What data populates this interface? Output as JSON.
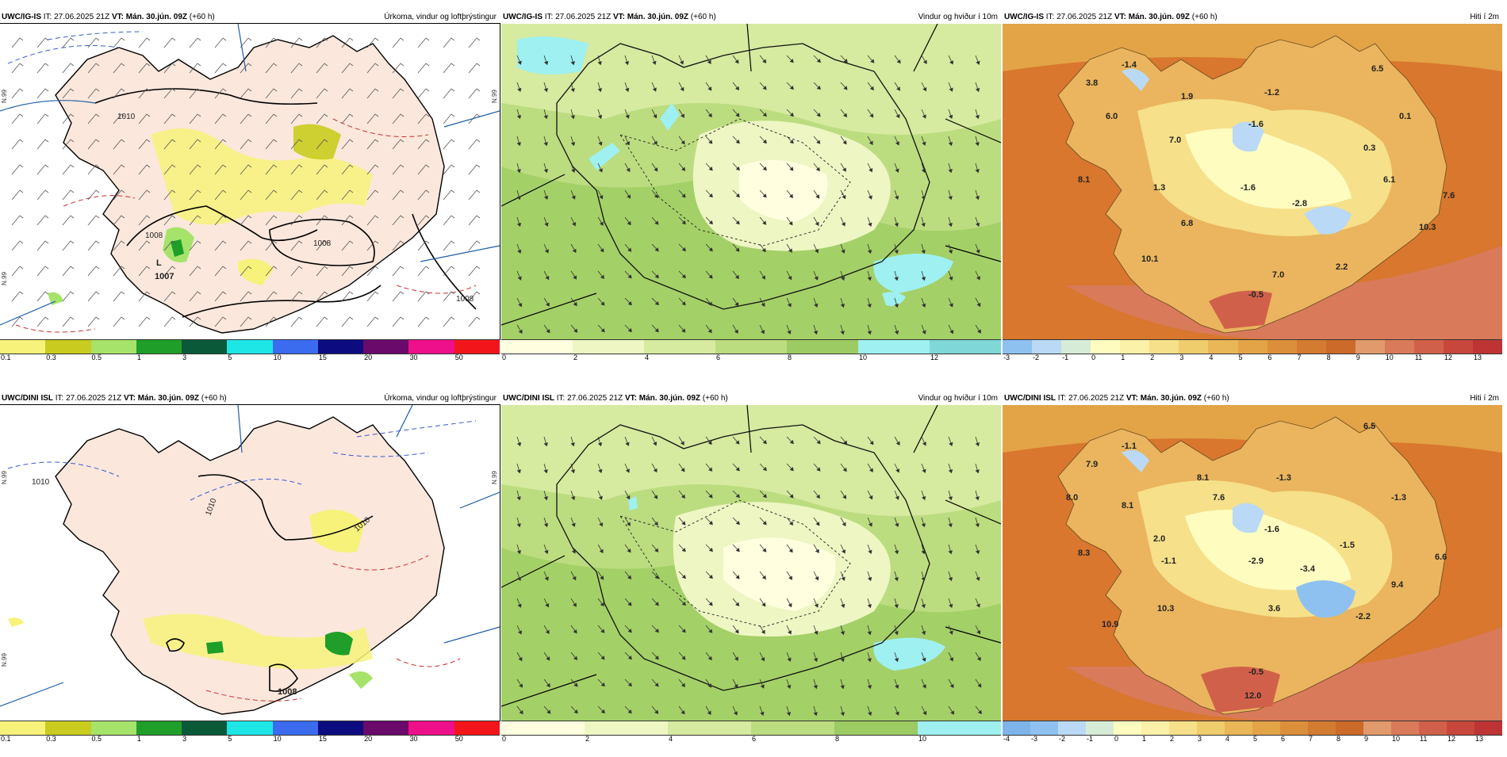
{
  "rows": [
    {
      "model": "UWC/IG-IS",
      "it_label": "IT:",
      "it": "27.06.2025 21Z",
      "vt_label": "VT:",
      "vt": "Mán. 30.jún. 09Z",
      "lead": "(+60 h)",
      "panels": {
        "precip": {
          "title": "Úrkoma, vindur og loftþrýstingur",
          "isobar_labels": [
            "1010",
            "1008",
            "1008",
            "1008",
            "1007"
          ],
          "low_marker": "L",
          "lat_labels": [
            "N.99",
            "N.99",
            "N.99"
          ]
        },
        "wind": {
          "title": "Vindur og hviður í 10m"
        },
        "temp": {
          "title": "Hiti í 2m",
          "values": [
            "3.8",
            "-1.4",
            "6.0",
            "1.9",
            "-1.2",
            "-1.6",
            "6.5",
            "0.1",
            "7.0",
            "0.3",
            "8.1",
            "1.3",
            "-1.6",
            "-2.8",
            "6.1",
            "7.6",
            "6.8",
            "10.3",
            "10.1",
            "2.2",
            "7.0",
            "-0.5"
          ]
        }
      },
      "scales": {
        "precip": [
          "0.1",
          "0.3",
          "0.5",
          "1",
          "3",
          "5",
          "10",
          "15",
          "20",
          "30",
          "50"
        ],
        "wind": [
          "0",
          "2",
          "4",
          "6",
          "8",
          "10",
          "12"
        ],
        "temp": [
          "-3",
          "-2",
          "-1",
          "0",
          "1",
          "2",
          "3",
          "4",
          "5",
          "6",
          "7",
          "8",
          "9",
          "10",
          "11",
          "12",
          "13"
        ]
      }
    },
    {
      "model": "UWC/DINI ISL",
      "it_label": "IT:",
      "it": "27.06.2025 21Z",
      "vt_label": "VT:",
      "vt": "Mán. 30.jún. 09Z",
      "lead": "(+60 h)",
      "panels": {
        "precip": {
          "title": "Úrkoma, vindur og loftþrýstingur",
          "isobar_labels": [
            "1010",
            "1010",
            "1010",
            "1008"
          ],
          "low_marker": "",
          "lat_labels": [
            "N.99",
            "N.99",
            "N.99"
          ]
        },
        "wind": {
          "title": "Vindur og hviður í 10m"
        },
        "temp": {
          "title": "Hiti í 2m",
          "values": [
            "7.9",
            "-1.1",
            "6.5",
            "8.1",
            "8.0",
            "8.1",
            "-1.3",
            "7.6",
            "-1.3",
            "-1.6",
            "8.3",
            "2.0",
            "-1.5",
            "6.6",
            "-1.1",
            "-2.9",
            "-3.4",
            "9.4",
            "10.3",
            "3.6",
            "10.9",
            "-2.2",
            "-0.5",
            "12.0"
          ]
        }
      },
      "scales": {
        "precip": [
          "0.1",
          "0.3",
          "0.5",
          "1",
          "3",
          "5",
          "10",
          "15",
          "20",
          "30",
          "50"
        ],
        "wind": [
          "0",
          "2",
          "4",
          "6",
          "8",
          "10"
        ],
        "temp": [
          "-4",
          "-3",
          "-2",
          "-1",
          "0",
          "1",
          "2",
          "3",
          "4",
          "5",
          "6",
          "7",
          "8",
          "9",
          "10",
          "11",
          "12",
          "13"
        ]
      }
    }
  ],
  "colors": {
    "precip": [
      "#f7f27a",
      "#c9cc1e",
      "#a6e36a",
      "#1f9e2a",
      "#0a5a3a",
      "#1ee6e6",
      "#3b6cf0",
      "#0c0c80",
      "#6a0a6a",
      "#ee0f8a",
      "#f2161a"
    ],
    "wind": [
      "#ffffe0",
      "#eef6c4",
      "#d6eaa0",
      "#bcdc80",
      "#9bcb62",
      "#9ff0f0",
      "#7fd7d7",
      "#5ebdbd"
    ],
    "temp": [
      "#8ec1f0",
      "#b9d9f6",
      "#d7ecd6",
      "#fffcc0",
      "#fbf1a8",
      "#f6e08a",
      "#efcc6c",
      "#e9b758",
      "#e3a347",
      "#dc8f3a",
      "#d27b31",
      "#cc6a2a",
      "#e09a6c",
      "#d97a5a",
      "#d1604b",
      "#c8473c",
      "#be3434"
    ],
    "land_precip": "#fbe7dc",
    "sea_precip": "#ffffff",
    "land_wind": "#c9e38e",
    "sea_temp": "#d8772d",
    "land_temp": "#eab55e"
  }
}
